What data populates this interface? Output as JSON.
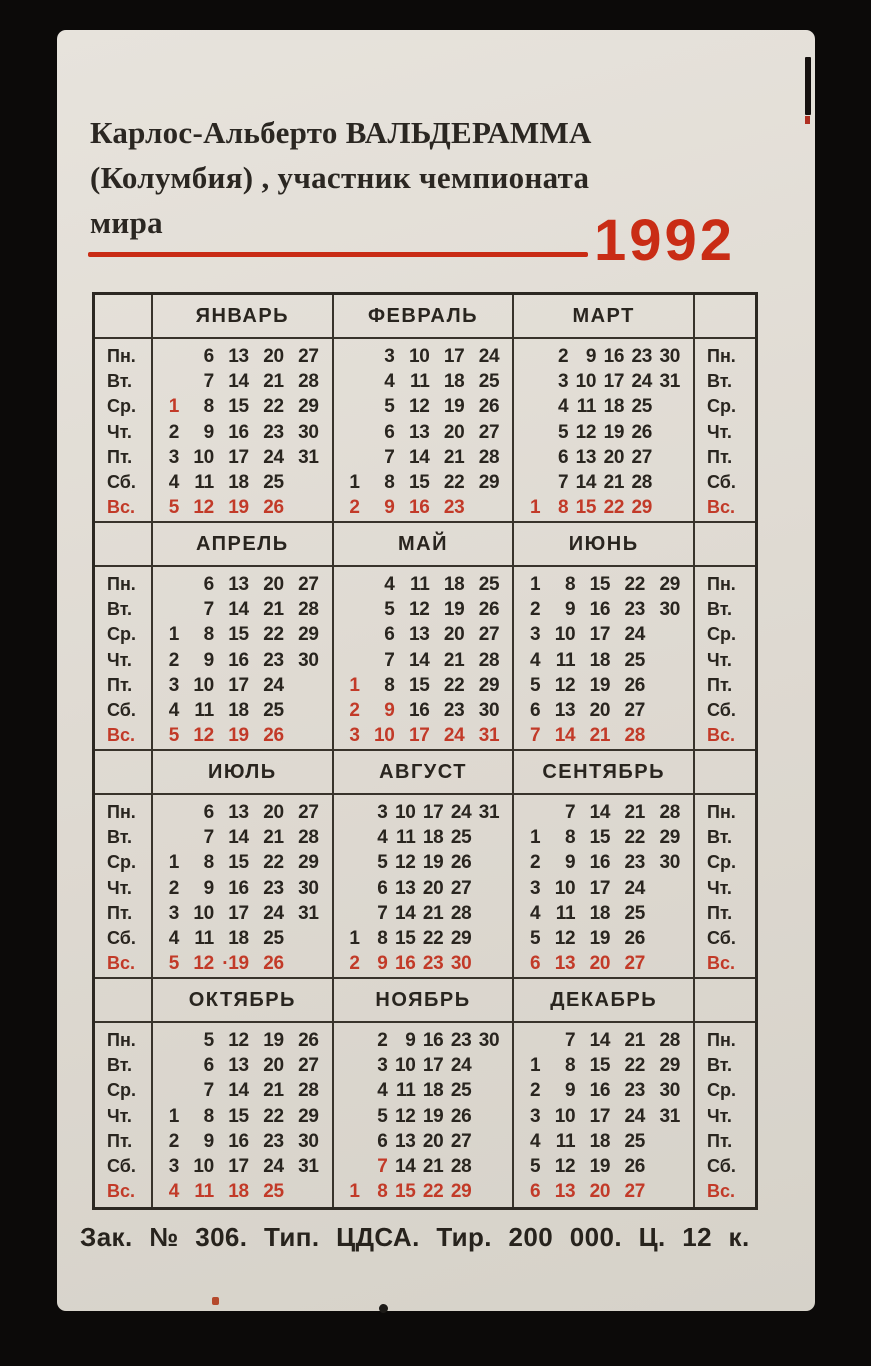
{
  "colors": {
    "photo_background": "#0c0a09",
    "card_paper": "#ded9d1",
    "ink": "#29251f",
    "red_dates": "#c23a28",
    "year_red": "#c92c15",
    "grid_line": "#38332b"
  },
  "header": {
    "title_lines": [
      "Карлос-Альберто ВАЛЬДЕРАММА",
      "(Колумбия) , участник чемпионата",
      "мира"
    ],
    "year": "1992"
  },
  "calendar": {
    "day_labels": [
      "Пн.",
      "Вт.",
      "Ср.",
      "Чт.",
      "Пт.",
      "Сб.",
      "Вс."
    ],
    "sunday_row": 6,
    "months": [
      {
        "name": "ЯНВАРЬ",
        "cols": 5,
        "red_cells": [
          [
            2,
            0
          ]
        ],
        "rows": [
          [
            "",
            "6",
            "13",
            "20",
            "27"
          ],
          [
            "",
            "7",
            "14",
            "21",
            "28"
          ],
          [
            "1",
            "8",
            "15",
            "22",
            "29"
          ],
          [
            "2",
            "9",
            "16",
            "23",
            "30"
          ],
          [
            "3",
            "10",
            "17",
            "24",
            "31"
          ],
          [
            "4",
            "11",
            "18",
            "25",
            ""
          ],
          [
            "5",
            "12",
            "19",
            "26",
            ""
          ]
        ]
      },
      {
        "name": "ФЕВРАЛЬ",
        "cols": 5,
        "red_cells": [],
        "rows": [
          [
            "",
            "3",
            "10",
            "17",
            "24"
          ],
          [
            "",
            "4",
            "11",
            "18",
            "25"
          ],
          [
            "",
            "5",
            "12",
            "19",
            "26"
          ],
          [
            "",
            "6",
            "13",
            "20",
            "27"
          ],
          [
            "",
            "7",
            "14",
            "21",
            "28"
          ],
          [
            "1",
            "8",
            "15",
            "22",
            "29"
          ],
          [
            "2",
            "9",
            "16",
            "23",
            ""
          ]
        ]
      },
      {
        "name": "МАРТ",
        "cols": 6,
        "red_cells": [],
        "rows": [
          [
            "",
            "2",
            "9",
            "16",
            "23",
            "30"
          ],
          [
            "",
            "3",
            "10",
            "17",
            "24",
            "31"
          ],
          [
            "",
            "4",
            "11",
            "18",
            "25",
            ""
          ],
          [
            "",
            "5",
            "12",
            "19",
            "26",
            ""
          ],
          [
            "",
            "6",
            "13",
            "20",
            "27",
            ""
          ],
          [
            "",
            "7",
            "14",
            "21",
            "28",
            ""
          ],
          [
            "1",
            "8",
            "15",
            "22",
            "29",
            ""
          ]
        ]
      },
      {
        "name": "АПРЕЛЬ",
        "cols": 5,
        "red_cells": [],
        "rows": [
          [
            "",
            "6",
            "13",
            "20",
            "27"
          ],
          [
            "",
            "7",
            "14",
            "21",
            "28"
          ],
          [
            "1",
            "8",
            "15",
            "22",
            "29"
          ],
          [
            "2",
            "9",
            "16",
            "23",
            "30"
          ],
          [
            "3",
            "10",
            "17",
            "24",
            ""
          ],
          [
            "4",
            "11",
            "18",
            "25",
            ""
          ],
          [
            "5",
            "12",
            "19",
            "26",
            ""
          ]
        ]
      },
      {
        "name": "МАЙ",
        "cols": 5,
        "red_cells": [
          [
            4,
            0
          ],
          [
            5,
            0
          ],
          [
            5,
            1
          ]
        ],
        "rows": [
          [
            "",
            "4",
            "11",
            "18",
            "25"
          ],
          [
            "",
            "5",
            "12",
            "19",
            "26"
          ],
          [
            "",
            "6",
            "13",
            "20",
            "27"
          ],
          [
            "",
            "7",
            "14",
            "21",
            "28"
          ],
          [
            "1",
            "8",
            "15",
            "22",
            "29"
          ],
          [
            "2",
            "9",
            "16",
            "23",
            "30"
          ],
          [
            "3",
            "10",
            "17",
            "24",
            "31"
          ]
        ]
      },
      {
        "name": "ИЮНЬ",
        "cols": 5,
        "red_cells": [],
        "rows": [
          [
            "1",
            "8",
            "15",
            "22",
            "29"
          ],
          [
            "2",
            "9",
            "16",
            "23",
            "30"
          ],
          [
            "3",
            "10",
            "17",
            "24",
            ""
          ],
          [
            "4",
            "11",
            "18",
            "25",
            ""
          ],
          [
            "5",
            "12",
            "19",
            "26",
            ""
          ],
          [
            "6",
            "13",
            "20",
            "27",
            ""
          ],
          [
            "7",
            "14",
            "21",
            "28",
            ""
          ]
        ]
      },
      {
        "name": "ИЮЛЬ",
        "cols": 5,
        "red_cells": [],
        "rows": [
          [
            "",
            "6",
            "13",
            "20",
            "27"
          ],
          [
            "",
            "7",
            "14",
            "21",
            "28"
          ],
          [
            "1",
            "8",
            "15",
            "22",
            "29"
          ],
          [
            "2",
            "9",
            "16",
            "23",
            "30"
          ],
          [
            "3",
            "10",
            "17",
            "24",
            "31"
          ],
          [
            "4",
            "11",
            "18",
            "25",
            ""
          ],
          [
            "5",
            "12",
            "·19",
            "26",
            ""
          ]
        ]
      },
      {
        "name": "АВГУСТ",
        "cols": 6,
        "red_cells": [],
        "rows": [
          [
            "",
            "3",
            "10",
            "17",
            "24",
            "31"
          ],
          [
            "",
            "4",
            "11",
            "18",
            "25",
            ""
          ],
          [
            "",
            "5",
            "12",
            "19",
            "26",
            ""
          ],
          [
            "",
            "6",
            "13",
            "20",
            "27",
            ""
          ],
          [
            "",
            "7",
            "14",
            "21",
            "28",
            ""
          ],
          [
            "1",
            "8",
            "15",
            "22",
            "29",
            ""
          ],
          [
            "2",
            "9",
            "16",
            "23",
            "30",
            ""
          ]
        ]
      },
      {
        "name": "СЕНТЯБРЬ",
        "cols": 5,
        "red_cells": [],
        "rows": [
          [
            "",
            "7",
            "14",
            "21",
            "28"
          ],
          [
            "1",
            "8",
            "15",
            "22",
            "29"
          ],
          [
            "2",
            "9",
            "16",
            "23",
            "30"
          ],
          [
            "3",
            "10",
            "17",
            "24",
            ""
          ],
          [
            "4",
            "11",
            "18",
            "25",
            ""
          ],
          [
            "5",
            "12",
            "19",
            "26",
            ""
          ],
          [
            "6",
            "13",
            "20",
            "27",
            ""
          ]
        ]
      },
      {
        "name": "ОКТЯБРЬ",
        "cols": 5,
        "red_cells": [],
        "rows": [
          [
            "",
            "5",
            "12",
            "19",
            "26"
          ],
          [
            "",
            "6",
            "13",
            "20",
            "27"
          ],
          [
            "",
            "7",
            "14",
            "21",
            "28"
          ],
          [
            "1",
            "8",
            "15",
            "22",
            "29"
          ],
          [
            "2",
            "9",
            "16",
            "23",
            "30"
          ],
          [
            "3",
            "10",
            "17",
            "24",
            "31"
          ],
          [
            "4",
            "11",
            "18",
            "25",
            ""
          ]
        ]
      },
      {
        "name": "НОЯБРЬ",
        "cols": 6,
        "red_cells": [
          [
            5,
            1
          ]
        ],
        "rows": [
          [
            "",
            "2",
            "9",
            "16",
            "23",
            "30"
          ],
          [
            "",
            "3",
            "10",
            "17",
            "24",
            ""
          ],
          [
            "",
            "4",
            "11",
            "18",
            "25",
            ""
          ],
          [
            "",
            "5",
            "12",
            "19",
            "26",
            ""
          ],
          [
            "",
            "6",
            "13",
            "20",
            "27",
            ""
          ],
          [
            "",
            "7",
            "14",
            "21",
            "28",
            ""
          ],
          [
            "1",
            "8",
            "15",
            "22",
            "29",
            ""
          ]
        ]
      },
      {
        "name": "ДЕКАБРЬ",
        "cols": 5,
        "red_cells": [],
        "rows": [
          [
            "",
            "7",
            "14",
            "21",
            "28"
          ],
          [
            "1",
            "8",
            "15",
            "22",
            "29"
          ],
          [
            "2",
            "9",
            "16",
            "23",
            "30"
          ],
          [
            "3",
            "10",
            "17",
            "24",
            "31"
          ],
          [
            "4",
            "11",
            "18",
            "25",
            ""
          ],
          [
            "5",
            "12",
            "19",
            "26",
            ""
          ],
          [
            "6",
            "13",
            "20",
            "27",
            ""
          ]
        ]
      }
    ]
  },
  "footer": {
    "imprint": "Зак. № 306. Тип. ЦДСА. Тир. 200 000. Ц. 12 к."
  }
}
